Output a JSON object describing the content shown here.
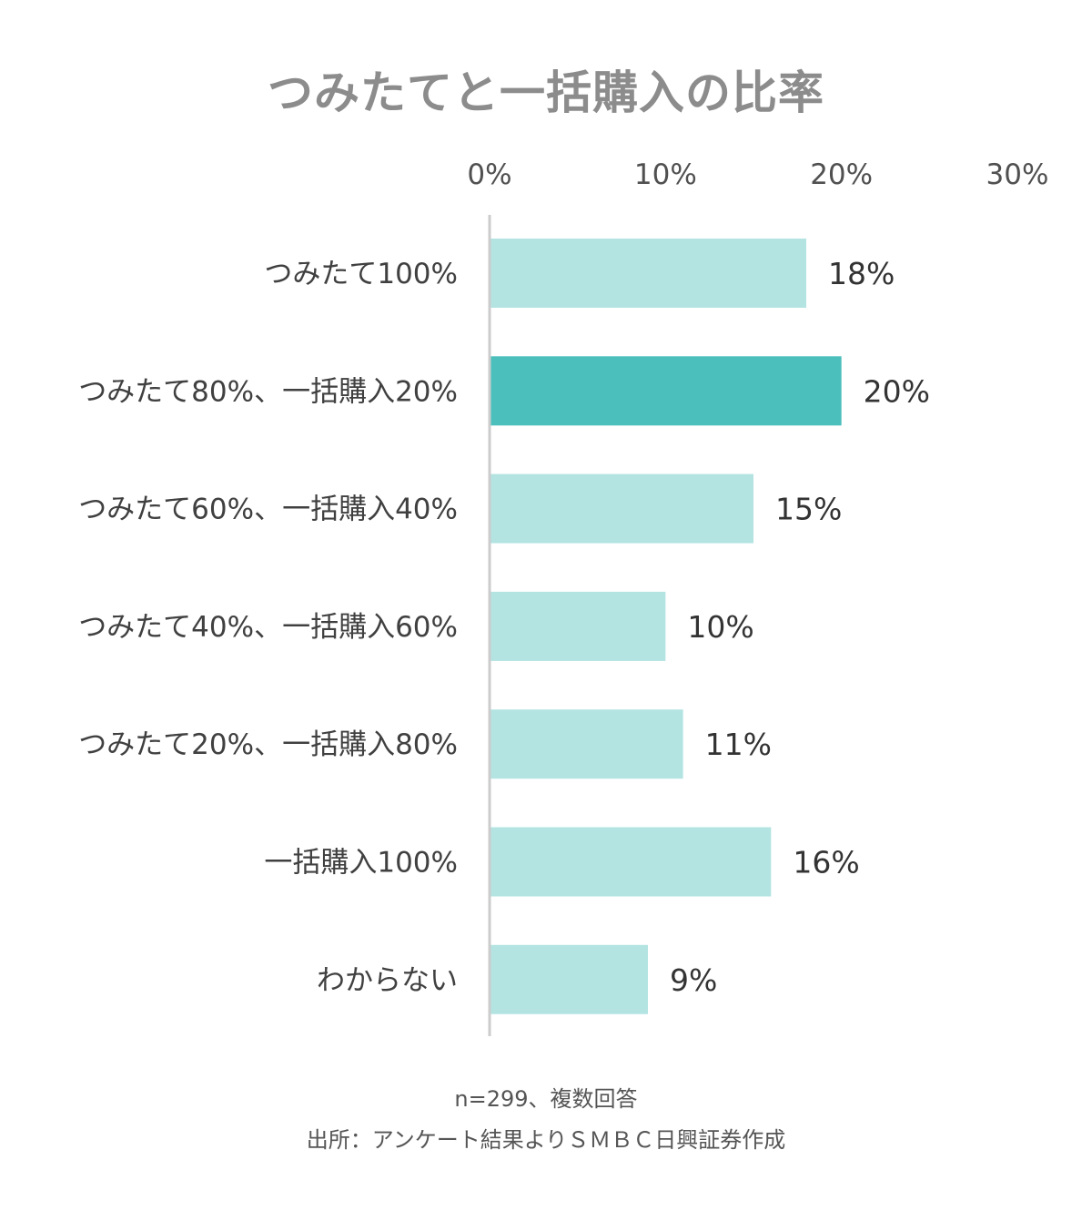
{
  "chart_data": {
    "type": "bar",
    "orientation": "horizontal",
    "title": "つみたてと一括購入の比率",
    "categories": [
      "つみたて100%",
      "つみたて80%、一括購入20%",
      "つみたて60%、一括購入40%",
      "つみたて40%、一括購入60%",
      "つみたて20%、一括購入80%",
      "一括購入100%",
      "わからない"
    ],
    "values": [
      18,
      20,
      15,
      10,
      11,
      16,
      9
    ],
    "data_labels": [
      "18%",
      "20%",
      "15%",
      "10%",
      "11%",
      "16%",
      "9%"
    ],
    "highlight_index": 1,
    "xlim": [
      0,
      30
    ],
    "xticks": [
      0,
      10,
      20,
      30
    ],
    "xtick_labels": [
      "0%",
      "10%",
      "20%",
      "30%"
    ],
    "x_axis_position": "top",
    "grid": false,
    "legend": false,
    "colors": {
      "bar": "#b3e4e2",
      "highlight": "#4bbfbb",
      "axis": "#cccccc",
      "label": "#404040",
      "tick": "#505050"
    }
  },
  "notes": {
    "sample": "n=299、複数回答",
    "source": "出所：アンケート結果よりＳＭＢＣ日興証券作成"
  }
}
